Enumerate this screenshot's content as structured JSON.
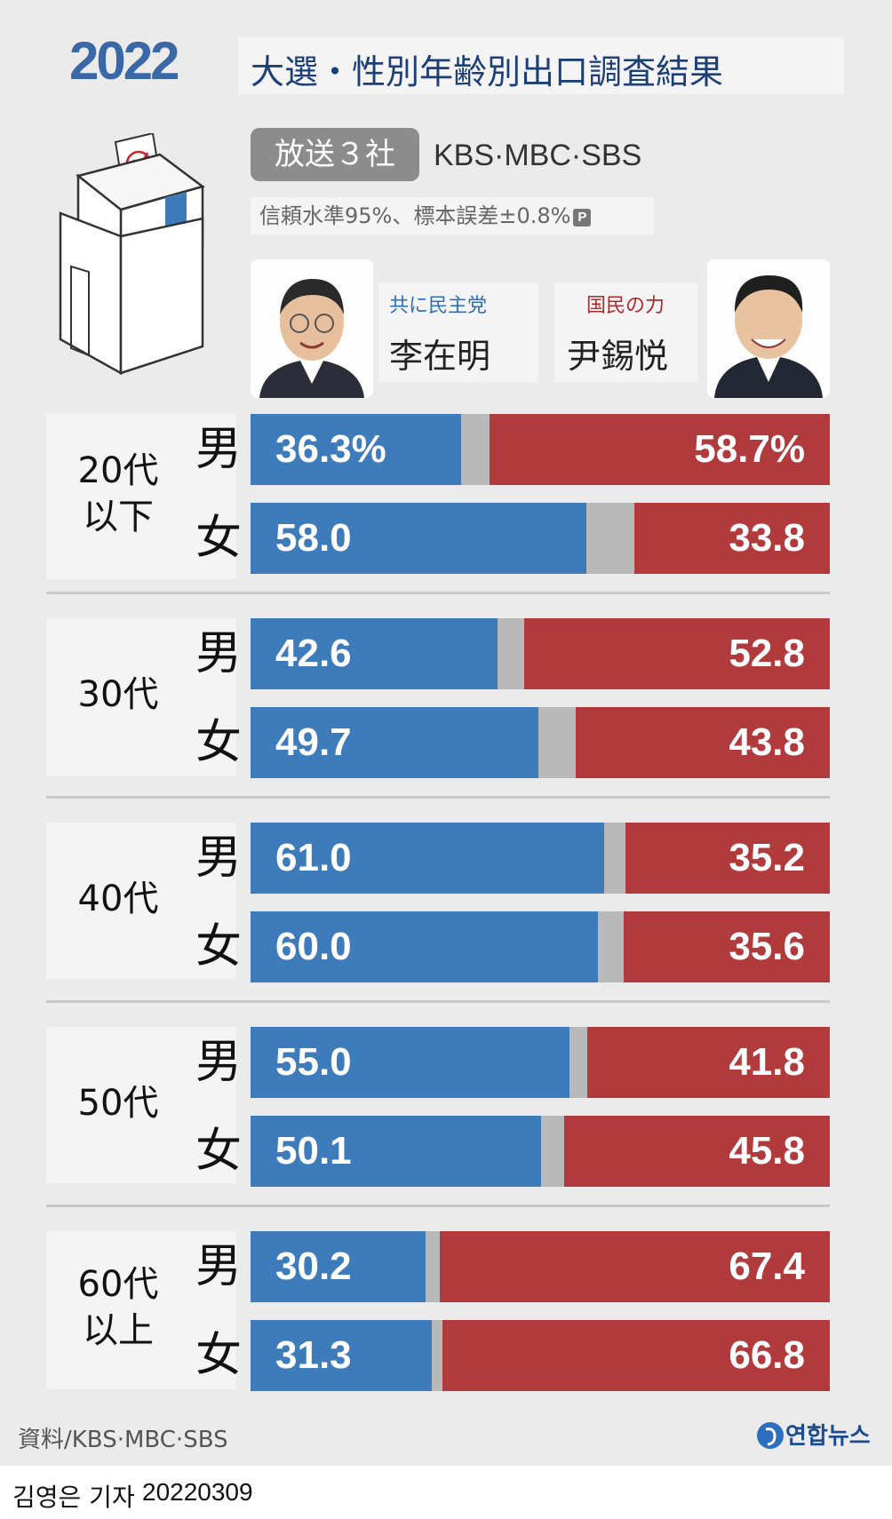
{
  "header": {
    "year": "2022",
    "title": "大選・性別年齢別出口調査結果",
    "source_pill": "放送３社",
    "source_list": "KBS·MBC·SBS",
    "confidence": "信頼水準95%、標本誤差±0.8%",
    "p_badge": "P"
  },
  "candidates": {
    "left": {
      "party": "共に民主党",
      "name": "李在明",
      "color": "#3e7bba"
    },
    "right": {
      "party": "国民の力",
      "name": "尹錫悦",
      "color": "#b13a3d"
    }
  },
  "gender_labels": {
    "male": "男",
    "female": "女"
  },
  "groups": [
    {
      "age": "20代\n以下"
    },
    {
      "age": "30代"
    },
    {
      "age": "40代"
    },
    {
      "age": "50代"
    },
    {
      "age": "60代\n以上"
    }
  ],
  "chart_data": {
    "type": "bar",
    "stacked": true,
    "orientation": "horizontal",
    "categories": [
      "20代以下 男",
      "20代以下 女",
      "30代 男",
      "30代 女",
      "40代 男",
      "40代 女",
      "50代 男",
      "50代 女",
      "60代以上 男",
      "60代以上 女"
    ],
    "series": [
      {
        "name": "李在明",
        "values": [
          36.3,
          58.0,
          42.6,
          49.7,
          61.0,
          60.0,
          55.0,
          50.1,
          30.2,
          31.3
        ]
      },
      {
        "name": "尹錫悦",
        "values": [
          58.7,
          33.8,
          52.8,
          43.8,
          35.2,
          35.6,
          41.8,
          45.8,
          67.4,
          66.8
        ]
      }
    ],
    "labels_left": [
      "36.3%",
      "58.0",
      "42.6",
      "49.7",
      "61.0",
      "60.0",
      "55.0",
      "50.1",
      "30.2",
      "31.3"
    ],
    "labels_right": [
      "58.7%",
      "33.8",
      "52.8",
      "43.8",
      "35.2",
      "35.6",
      "41.8",
      "45.8",
      "67.4",
      "66.8"
    ],
    "xlim": [
      0,
      100
    ],
    "colors": {
      "left": "#3e7bba",
      "right": "#b13a3d",
      "other": "#b9b9b9"
    }
  },
  "footer": {
    "source": "資料/KBS·MBC·SBS",
    "logo": "연합뉴스",
    "byline": "김영은 기자",
    "date": "20220309"
  }
}
